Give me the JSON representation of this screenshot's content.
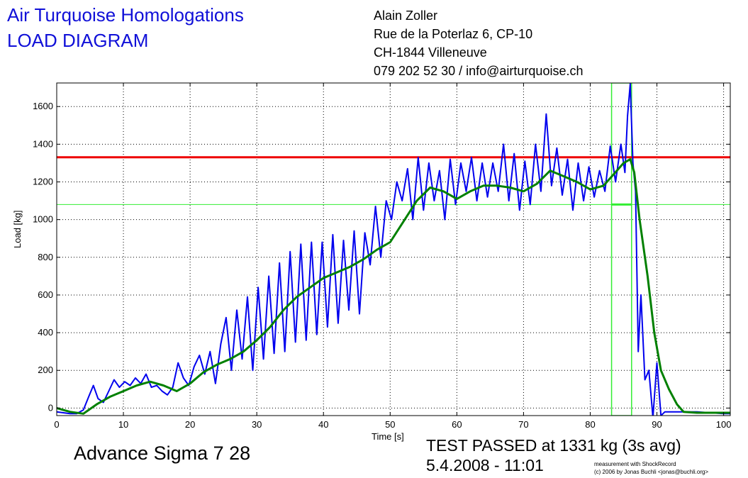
{
  "header": {
    "title_line1": "Air Turquoise Homologations",
    "title_line2": "LOAD DIAGRAM",
    "title_color": "#1010d8"
  },
  "address": [
    "Alain Zoller",
    "Rue de la Poterlaz 6, CP-10",
    "CH-1844 Villeneuve",
    "079 202 52 30 / info@airturquoise.ch"
  ],
  "footer": {
    "glider": "Advance Sigma 7 28",
    "result_line1": "TEST PASSED at 1331 kg (3s avg)",
    "result_line2": "5.4.2008 - 11:01",
    "credit_line1": "measurement with ShockRecord",
    "credit_line2": "(c) 2006 by Jonas Buchli <jonas@buchli.org>"
  },
  "chart_data": {
    "type": "line",
    "xlabel": "Time [s]",
    "ylabel": "Load [kg]",
    "xlim": [
      0,
      101
    ],
    "ylim": [
      -40,
      1725
    ],
    "x_ticks": [
      0,
      10,
      20,
      30,
      40,
      50,
      60,
      70,
      80,
      90,
      100
    ],
    "y_ticks": [
      0,
      200,
      400,
      600,
      800,
      1000,
      1200,
      1400,
      1600
    ],
    "grid": true,
    "colors": {
      "raw": "#0000ee",
      "avg": "#008000",
      "threshold": "#ee0000",
      "window": "#33ee33"
    },
    "series": [
      {
        "role": "raw",
        "x": [
          0,
          1,
          2,
          3,
          4,
          4.8,
          5.5,
          6.2,
          7,
          7.8,
          8.6,
          9.4,
          10.2,
          11,
          11.8,
          12.6,
          13.4,
          14.2,
          15,
          15.8,
          16.6,
          17.4,
          18.2,
          19,
          19.8,
          20.6,
          21.4,
          22.2,
          23,
          23.8,
          24.6,
          25.4,
          26.2,
          27,
          27.8,
          28.6,
          29.4,
          30.2,
          31,
          31.8,
          32.6,
          33.4,
          34.2,
          35,
          35.8,
          36.6,
          37.4,
          38.2,
          39,
          39.8,
          40.6,
          41.4,
          42.2,
          43,
          43.8,
          44.6,
          45.4,
          46.2,
          47,
          47.8,
          48.6,
          49.4,
          50.2,
          51,
          51.8,
          52.6,
          53.4,
          54.2,
          55,
          55.8,
          56.6,
          57.4,
          58.2,
          59,
          59.8,
          60.6,
          61.4,
          62.2,
          63,
          63.8,
          64.6,
          65.4,
          66.2,
          67,
          67.8,
          68.6,
          69.4,
          70.2,
          71,
          71.8,
          72.6,
          73.4,
          74.2,
          75,
          75.8,
          76.6,
          77.4,
          78.2,
          79,
          79.8,
          80.6,
          81.4,
          82.2,
          83,
          83.8,
          84.6,
          85.2,
          85.6,
          86,
          86.4,
          86.8,
          87.2,
          87.6,
          88.2,
          88.8,
          89.4,
          90,
          90.6,
          91.2,
          91.8,
          92.4,
          93,
          94,
          96,
          98,
          100,
          101
        ],
        "y": [
          -20,
          -25,
          -30,
          -30,
          -10,
          60,
          120,
          50,
          30,
          90,
          150,
          110,
          140,
          120,
          160,
          130,
          180,
          110,
          120,
          90,
          70,
          110,
          240,
          160,
          120,
          220,
          280,
          180,
          300,
          130,
          340,
          480,
          200,
          520,
          260,
          590,
          200,
          640,
          260,
          700,
          290,
          770,
          300,
          830,
          350,
          870,
          360,
          880,
          390,
          880,
          430,
          920,
          450,
          890,
          520,
          940,
          500,
          930,
          760,
          1070,
          800,
          1100,
          1000,
          1200,
          1100,
          1270,
          1000,
          1330,
          1050,
          1300,
          1100,
          1260,
          1000,
          1320,
          1080,
          1300,
          1150,
          1330,
          1100,
          1300,
          1120,
          1300,
          1150,
          1400,
          1100,
          1350,
          1050,
          1310,
          1080,
          1400,
          1150,
          1560,
          1180,
          1380,
          1130,
          1320,
          1050,
          1300,
          1100,
          1280,
          1120,
          1260,
          1150,
          1390,
          1200,
          1400,
          1250,
          1550,
          1720,
          1300,
          1150,
          300,
          600,
          150,
          200,
          -50,
          240,
          -40,
          -20,
          -20,
          -20,
          -20,
          -20,
          -20,
          -25,
          -30,
          -30
        ]
      },
      {
        "role": "avg",
        "x": [
          0,
          2,
          4,
          6,
          8,
          10,
          12,
          14,
          16,
          18,
          20,
          22,
          24,
          26,
          28,
          30,
          32,
          34,
          36,
          38,
          40,
          42,
          44,
          46,
          48,
          50,
          52,
          54,
          56,
          58,
          60,
          62,
          64,
          66,
          68,
          70,
          72,
          74,
          76,
          78,
          80,
          82,
          84,
          85,
          86,
          86.6,
          87.4,
          88.6,
          89.6,
          90.6,
          91.8,
          93,
          94,
          96,
          98,
          100,
          101
        ],
        "y": [
          0,
          -20,
          -30,
          20,
          60,
          90,
          120,
          140,
          120,
          90,
          130,
          190,
          230,
          260,
          300,
          360,
          430,
          520,
          590,
          640,
          690,
          720,
          750,
          790,
          840,
          880,
          990,
          1100,
          1170,
          1150,
          1110,
          1150,
          1180,
          1180,
          1170,
          1150,
          1190,
          1260,
          1230,
          1200,
          1160,
          1180,
          1260,
          1300,
          1320,
          1250,
          1000,
          700,
          400,
          200,
          100,
          20,
          -20,
          -25,
          -25,
          -25,
          -25
        ]
      }
    ],
    "threshold_kg": 1331,
    "passed_window": {
      "x_start": 83.2,
      "x_end": 86.2,
      "y_low": 1080,
      "y_high": 1725
    }
  }
}
